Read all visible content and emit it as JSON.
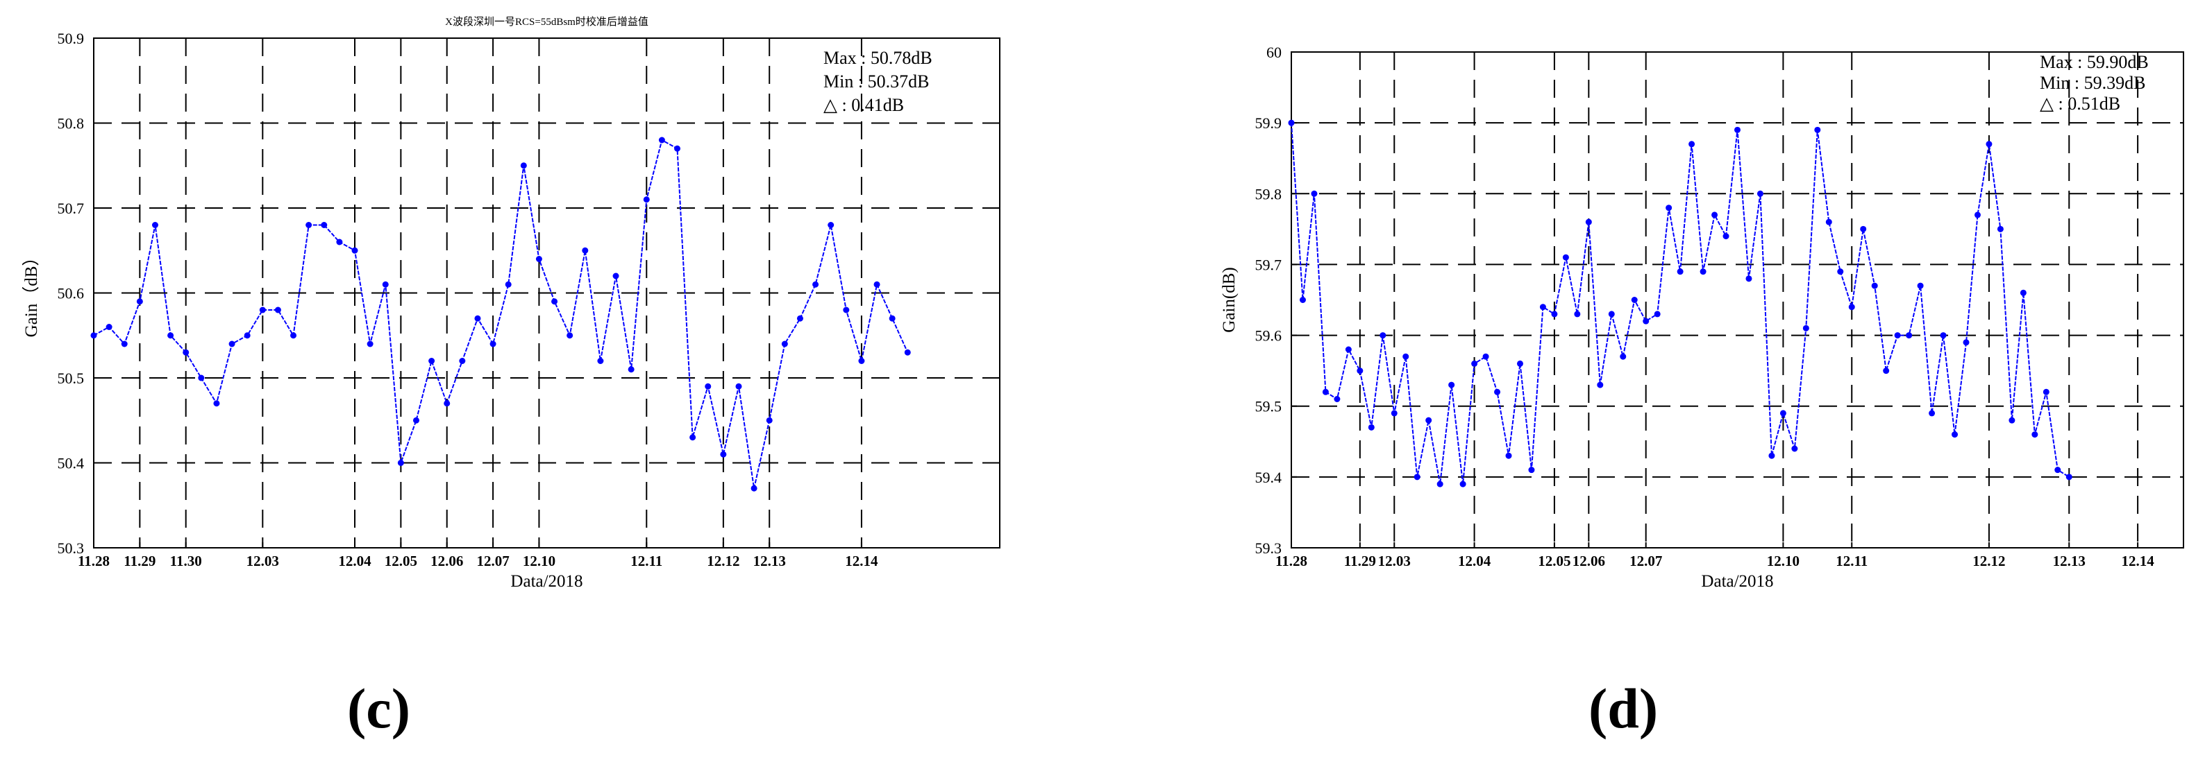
{
  "panels": [
    {
      "label": "(c)",
      "chart_data": {
        "type": "line",
        "title": "X波段深圳一号RCS=55dBsm时校准后增益值",
        "xlabel": "Data/2018",
        "ylabel": "Gain（dB）",
        "ylim": [
          50.3,
          50.9
        ],
        "yticks": [
          "50.3",
          "50.4",
          "50.5",
          "50.6",
          "50.7",
          "50.8",
          "50.9"
        ],
        "xticks": [
          {
            "label": "11.28",
            "index": 0
          },
          {
            "label": "11.29",
            "index": 3
          },
          {
            "label": "11.30",
            "index": 6
          },
          {
            "label": "12.03",
            "index": 11
          },
          {
            "label": "12.04",
            "index": 17
          },
          {
            "label": "12.05",
            "index": 20
          },
          {
            "label": "12.06",
            "index": 23
          },
          {
            "label": "12.07",
            "index": 26
          },
          {
            "label": "12.10",
            "index": 29
          },
          {
            "label": "12.11",
            "index": 36
          },
          {
            "label": "12.12",
            "index": 41
          },
          {
            "label": "12.13",
            "index": 44
          },
          {
            "label": "12.14",
            "index": 50
          }
        ],
        "xrange": [
          0,
          59
        ],
        "grid": true,
        "annotations": [
          "Max : 50.78dB",
          "Min : 50.37dB",
          "△ :   0.41dB"
        ],
        "series": [
          {
            "color": "#0000ff",
            "values": [
              50.55,
              50.56,
              50.54,
              50.59,
              50.68,
              50.55,
              50.53,
              50.5,
              50.47,
              50.54,
              50.55,
              50.58,
              50.58,
              50.55,
              50.68,
              50.68,
              50.66,
              50.65,
              50.54,
              50.61,
              50.4,
              50.45,
              50.52,
              50.47,
              50.52,
              50.57,
              50.54,
              50.61,
              50.75,
              50.64,
              50.59,
              50.55,
              50.65,
              50.52,
              50.62,
              50.51,
              50.71,
              50.78,
              50.77,
              50.43,
              50.49,
              50.41,
              50.49,
              50.37,
              50.45,
              50.54,
              50.57,
              50.61,
              50.68,
              50.58,
              50.52,
              50.61,
              50.57,
              50.53
            ]
          }
        ]
      }
    },
    {
      "label": "(d)",
      "chart_data": {
        "type": "line",
        "title": "",
        "xlabel": "Data/2018",
        "ylabel": "Gain(dB)",
        "ylim": [
          59.3,
          60.0
        ],
        "yticks": [
          "59.3",
          "59.4",
          "59.5",
          "59.6",
          "59.7",
          "59.8",
          "59.9",
          "60"
        ],
        "xticks": [
          {
            "label": "11.28",
            "index": 0
          },
          {
            "label": "11.29",
            "index": 6
          },
          {
            "label": "12.03",
            "index": 9
          },
          {
            "label": "12.04",
            "index": 16
          },
          {
            "label": "12.05",
            "index": 23
          },
          {
            "label": "12.06",
            "index": 26
          },
          {
            "label": "12.07",
            "index": 31
          },
          {
            "label": "12.10",
            "index": 43
          },
          {
            "label": "12.11",
            "index": 49
          },
          {
            "label": "12.12",
            "index": 61
          },
          {
            "label": "12.13",
            "index": 68
          },
          {
            "label": "12.14",
            "index": 74
          }
        ],
        "xrange": [
          0,
          78
        ],
        "grid": true,
        "annotations": [
          "Max : 59.90dB",
          "Min : 59.39dB",
          "△ : 0.51dB"
        ],
        "series": [
          {
            "color": "#0000ff",
            "values": [
              59.9,
              59.65,
              59.8,
              59.52,
              59.51,
              59.58,
              59.55,
              59.47,
              59.6,
              59.49,
              59.57,
              59.4,
              59.48,
              59.39,
              59.53,
              59.39,
              59.56,
              59.57,
              59.52,
              59.43,
              59.56,
              59.41,
              59.64,
              59.63,
              59.71,
              59.63,
              59.76,
              59.53,
              59.63,
              59.57,
              59.65,
              59.62,
              59.63,
              59.78,
              59.69,
              59.87,
              59.69,
              59.77,
              59.74,
              59.89,
              59.68,
              59.8,
              59.43,
              59.49,
              59.44,
              59.61,
              59.89,
              59.76,
              59.69,
              59.64,
              59.75,
              59.67,
              59.55,
              59.6,
              59.6,
              59.67,
              59.49,
              59.6,
              59.46,
              59.59,
              59.77,
              59.87,
              59.75,
              59.48,
              59.66,
              59.46,
              59.52,
              59.41,
              59.4
            ]
          }
        ]
      }
    }
  ]
}
